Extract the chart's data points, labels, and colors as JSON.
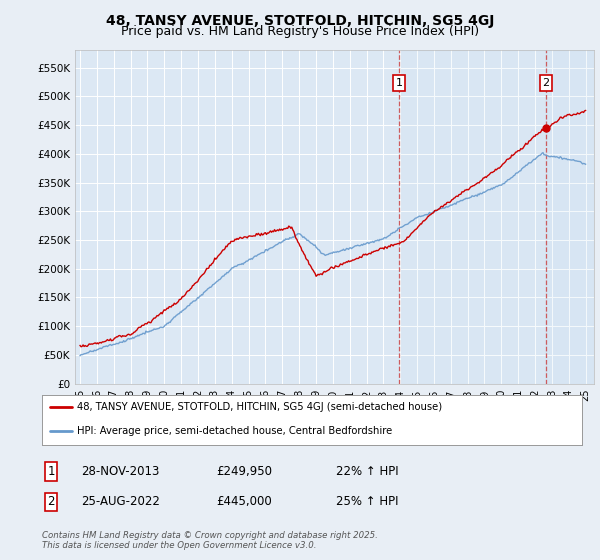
{
  "title": "48, TANSY AVENUE, STOTFOLD, HITCHIN, SG5 4GJ",
  "subtitle": "Price paid vs. HM Land Registry's House Price Index (HPI)",
  "ylim": [
    0,
    580000
  ],
  "yticks": [
    0,
    50000,
    100000,
    150000,
    200000,
    250000,
    300000,
    350000,
    400000,
    450000,
    500000,
    550000
  ],
  "ytick_labels": [
    "£0",
    "£50K",
    "£100K",
    "£150K",
    "£200K",
    "£250K",
    "£300K",
    "£350K",
    "£400K",
    "£450K",
    "£500K",
    "£550K"
  ],
  "background_color": "#e8eef5",
  "plot_bg_color": "#dce8f4",
  "grid_color": "#ffffff",
  "red_line_color": "#cc0000",
  "blue_line_color": "#6699cc",
  "vline_color": "#cc4444",
  "marker1_year": 2013.92,
  "marker2_year": 2022.65,
  "marker1_value": 249950,
  "marker2_value": 445000,
  "annotation1": {
    "label": "1",
    "date": "28-NOV-2013",
    "price": "£249,950",
    "pct": "22% ↑ HPI"
  },
  "annotation2": {
    "label": "2",
    "date": "25-AUG-2022",
    "price": "£445,000",
    "pct": "25% ↑ HPI"
  },
  "legend1": "48, TANSY AVENUE, STOTFOLD, HITCHIN, SG5 4GJ (semi-detached house)",
  "legend2": "HPI: Average price, semi-detached house, Central Bedfordshire",
  "footer": "Contains HM Land Registry data © Crown copyright and database right 2025.\nThis data is licensed under the Open Government Licence v3.0.",
  "title_fontsize": 10,
  "subtitle_fontsize": 9
}
